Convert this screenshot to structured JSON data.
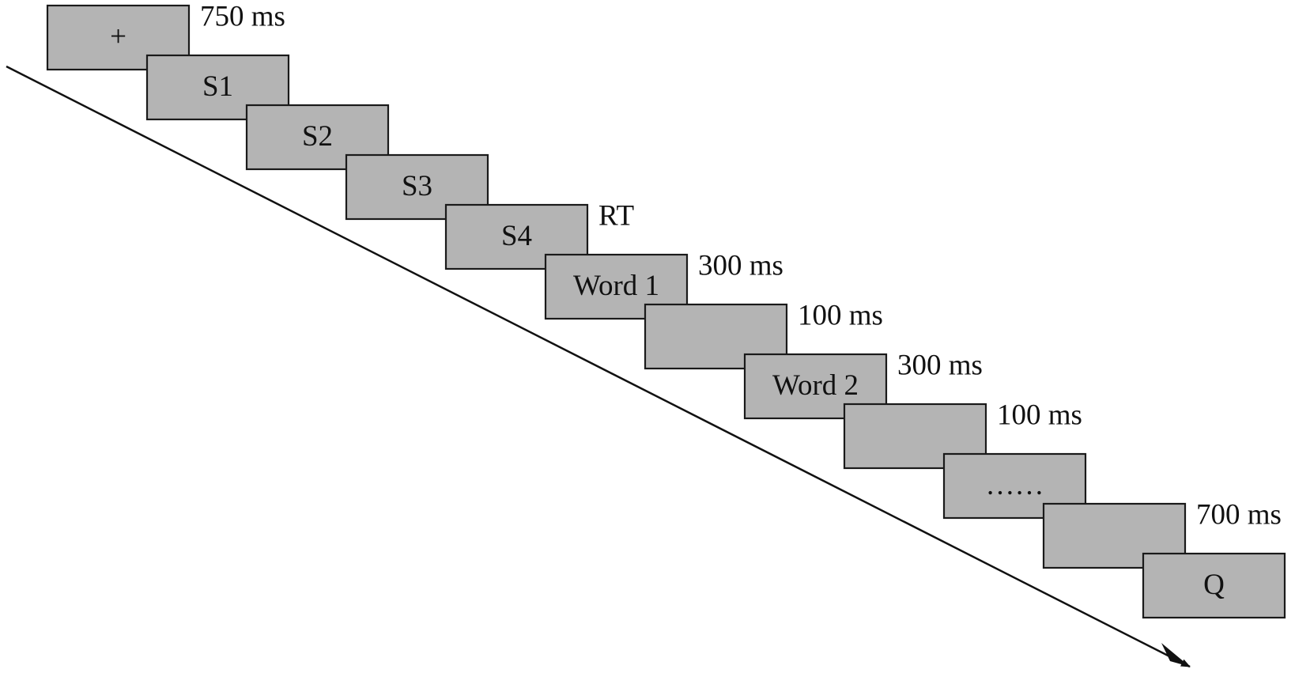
{
  "boxes": [
    {
      "text": "+",
      "duration": "750 ms"
    },
    {
      "text": "S1"
    },
    {
      "text": "S2"
    },
    {
      "text": "S3"
    },
    {
      "text": "S4",
      "duration": "RT"
    },
    {
      "text": "Word 1",
      "duration": "300 ms"
    },
    {
      "duration": "100 ms"
    },
    {
      "text": "Word 2",
      "duration": "300 ms"
    },
    {
      "duration": "100 ms"
    },
    {
      "text": "……"
    },
    {
      "duration": "700 ms"
    },
    {
      "text": "Q"
    }
  ]
}
